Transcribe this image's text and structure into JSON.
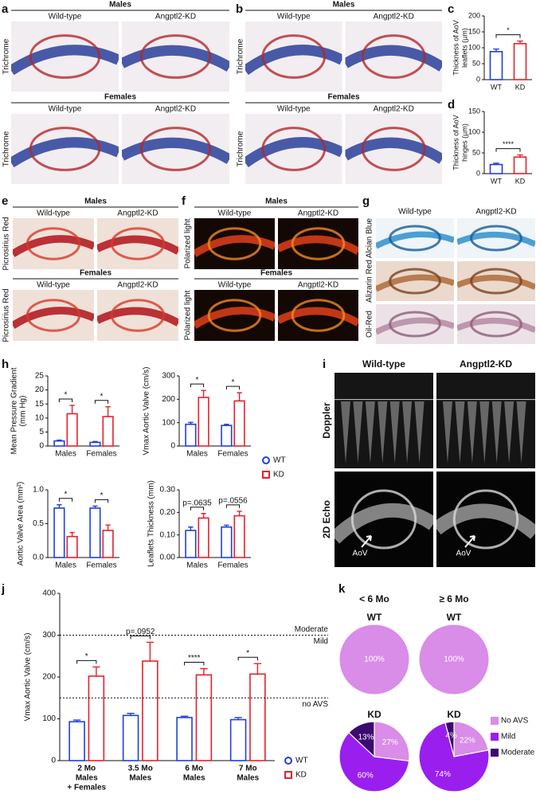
{
  "panels": {
    "a": {
      "letter": "a",
      "groups": [
        {
          "name": "Males",
          "columns": [
            "Wild-type",
            "Angptl2-KD"
          ],
          "stain": "Trichrome"
        },
        {
          "name": "Females",
          "columns": [
            "Wild-type",
            "Angptl2-KD"
          ],
          "stain": "Trichrome"
        }
      ]
    },
    "b": {
      "letter": "b",
      "groups": [
        {
          "name": "Males",
          "columns": [
            "Wild-type",
            "Angptl2-KD"
          ],
          "stain": "Trichrome"
        },
        {
          "name": "Females",
          "columns": [
            "Wild-type",
            "Angptl2-KD"
          ],
          "stain": "Trichrome"
        }
      ]
    },
    "c": {
      "letter": "c",
      "type": "bar",
      "ylabel": [
        "Thickness of AoV",
        "leaflets (µm)"
      ],
      "categories": [
        "WT",
        "KD"
      ],
      "values": [
        88,
        113
      ],
      "errors": [
        8,
        8
      ],
      "colors": [
        "#1f3fe0",
        "#e8202a"
      ],
      "ylim": [
        0,
        200
      ],
      "yticks": [
        0,
        50,
        100,
        150,
        200
      ],
      "significance": [
        "*"
      ]
    },
    "d": {
      "letter": "d",
      "type": "bar",
      "ylabel": [
        "Thickness of AoV",
        "hinges (µm)"
      ],
      "categories": [
        "WT",
        "KD"
      ],
      "values": [
        22,
        40
      ],
      "errors": [
        3,
        5
      ],
      "colors": [
        "#1f3fe0",
        "#e8202a"
      ],
      "ylim": [
        0,
        150
      ],
      "yticks": [
        0,
        50,
        100,
        150
      ],
      "significance": [
        "****"
      ]
    },
    "e": {
      "letter": "e",
      "groups": [
        {
          "name": "Males",
          "columns": [
            "Wild-type",
            "Angptl2-KD"
          ],
          "stain": "Picrosirius Red"
        },
        {
          "name": "Females",
          "columns": [
            "Wild-type",
            "Angptl2-KD"
          ],
          "stain": "Picrosirius Red"
        }
      ]
    },
    "f": {
      "letter": "f",
      "groups": [
        {
          "name": "Males",
          "columns": [
            "Wild-type",
            "Angptl2-KD"
          ],
          "stain": "Polarized light"
        },
        {
          "name": "Females",
          "columns": [
            "Wild-type",
            "Angptl2-KD"
          ],
          "stain": "Polarized light"
        }
      ]
    },
    "g": {
      "letter": "g",
      "columns": [
        "Wild-type",
        "Angptl2-KD"
      ],
      "stains": [
        "Alcian Blue",
        "Alizarin Red",
        "Oil-Red"
      ]
    },
    "h": {
      "letter": "h",
      "charts": [
        {
          "type": "bar",
          "ylabel": [
            "Mean Pressure Gradient",
            "(mm Hg)"
          ],
          "categories": [
            "Males",
            "Females"
          ],
          "series": [
            {
              "name": "WT",
              "color": "#1f3fe0",
              "marker": "circle",
              "values": [
                1.8,
                1.3
              ],
              "errors": [
                0.3,
                0.3
              ]
            },
            {
              "name": "KD",
              "color": "#e8202a",
              "marker": "square",
              "values": [
                11.5,
                10.5
              ],
              "errors": [
                3,
                3.5
              ]
            }
          ],
          "ylim": [
            0,
            25
          ],
          "yticks": [
            0,
            5,
            10,
            15,
            20,
            25
          ],
          "significance": [
            "*",
            "*"
          ]
        },
        {
          "type": "bar",
          "ylabel": "Vmax Aortic Valve (cm/s)",
          "categories": [
            "Males",
            "Females"
          ],
          "series": [
            {
              "name": "WT",
              "color": "#1f3fe0",
              "marker": "circle",
              "values": [
                93,
                88
              ],
              "errors": [
                8,
                5
              ]
            },
            {
              "name": "KD",
              "color": "#e8202a",
              "marker": "square",
              "values": [
                208,
                193
              ],
              "errors": [
                30,
                35
              ]
            }
          ],
          "ylim": [
            0,
            300
          ],
          "yticks": [
            0,
            100,
            200,
            300
          ],
          "significance": [
            "*",
            "*"
          ]
        },
        {
          "type": "bar",
          "ylabel": "Aortic Valve Area (mm²)",
          "categories": [
            "Males",
            "Females"
          ],
          "series": [
            {
              "name": "WT",
              "color": "#1f3fe0",
              "marker": "circle",
              "values": [
                0.73,
                0.73
              ],
              "errors": [
                0.05,
                0.03
              ]
            },
            {
              "name": "KD",
              "color": "#e8202a",
              "marker": "square",
              "values": [
                0.31,
                0.4
              ],
              "errors": [
                0.06,
                0.08
              ]
            }
          ],
          "ylim": [
            0,
            1
          ],
          "yticks": [
            {
              "value": 0,
              "label": "0.0"
            },
            {
              "value": 0.5,
              "label": "0.5"
            },
            {
              "value": 1,
              "label": "1.0"
            }
          ],
          "significance": [
            "*",
            "*"
          ]
        },
        {
          "type": "bar",
          "ylabel": "Leaflets Thickness (mm)",
          "categories": [
            "Males",
            "Females"
          ],
          "series": [
            {
              "name": "WT",
              "color": "#1f3fe0",
              "marker": "circle",
              "values": [
                0.12,
                0.135
              ],
              "errors": [
                0.015,
                0.008
              ]
            },
            {
              "name": "KD",
              "color": "#e8202a",
              "marker": "square",
              "values": [
                0.175,
                0.185
              ],
              "errors": [
                0.02,
                0.02
              ]
            }
          ],
          "ylim": [
            0,
            0.3
          ],
          "yticks": [
            {
              "value": 0,
              "label": "0.00"
            },
            {
              "value": 0.1,
              "label": "0.10"
            },
            {
              "value": 0.2,
              "label": "0.20"
            },
            {
              "value": 0.3,
              "label": "0.30"
            }
          ],
          "significance": [
            "p=.0635",
            "p=.0556"
          ]
        }
      ]
    },
    "i": {
      "letter": "i",
      "columns": [
        "Wild-type",
        "Angptl2-KD"
      ],
      "rows": [
        "Doppler",
        "2D Echo"
      ],
      "annotations": [
        "AoV",
        "AoV"
      ]
    },
    "j": {
      "letter": "j",
      "type": "bar",
      "ylabel": "Vmax Aortic Valve (cm/s)",
      "categories": [
        [
          "2 Mo",
          "Males",
          "+ Females"
        ],
        [
          "3.5 Mo",
          "Males"
        ],
        [
          "6 Mo",
          "Males"
        ],
        [
          "7 Mo",
          "Males"
        ]
      ],
      "series": [
        {
          "name": "WT",
          "color": "#1f3fe0",
          "marker": "circle",
          "values": [
            93,
            108,
            103,
            98
          ],
          "errors": [
            4,
            5,
            3,
            5
          ]
        },
        {
          "name": "KD",
          "color": "#e8202a",
          "marker": "square",
          "values": [
            202,
            238,
            205,
            207
          ],
          "errors": [
            22,
            45,
            15,
            25
          ]
        }
      ],
      "ylim": [
        0,
        400
      ],
      "yticks": [
        0,
        100,
        200,
        300,
        400
      ],
      "significance": [
        "*",
        "p=.0952",
        "****",
        "*"
      ],
      "reference_lines": [
        {
          "value": 300,
          "labels": [
            "Moderate",
            "Mild"
          ],
          "label_colors": [
            "#3b0b70",
            "#9a1fef"
          ]
        },
        {
          "value": 150,
          "labels": [
            "no AVS"
          ],
          "label_colors": [
            "#c77ad8"
          ]
        }
      ]
    },
    "k": {
      "letter": "k",
      "type": "pie",
      "columns": [
        "< 6 Mo",
        "≥ 6 Mo"
      ],
      "categories": [
        "No AVS",
        "Mild",
        "Moderate"
      ],
      "colors": [
        "#d98ce8",
        "#9a1fef",
        "#3b0b70"
      ],
      "rows": [
        {
          "title": "WT",
          "pies": [
            {
              "values": [
                100
              ],
              "value_labels": [
                "100%"
              ]
            },
            {
              "values": [
                100
              ],
              "value_labels": [
                "100%"
              ]
            }
          ]
        },
        {
          "title": "KD",
          "pies": [
            {
              "values": [
                27,
                60,
                13
              ],
              "value_labels": [
                "27%",
                "60%",
                "13%"
              ]
            },
            {
              "values": [
                22,
                74,
                4
              ],
              "value_labels": [
                "22%",
                "74%",
                "4%"
              ]
            }
          ]
        }
      ]
    }
  }
}
